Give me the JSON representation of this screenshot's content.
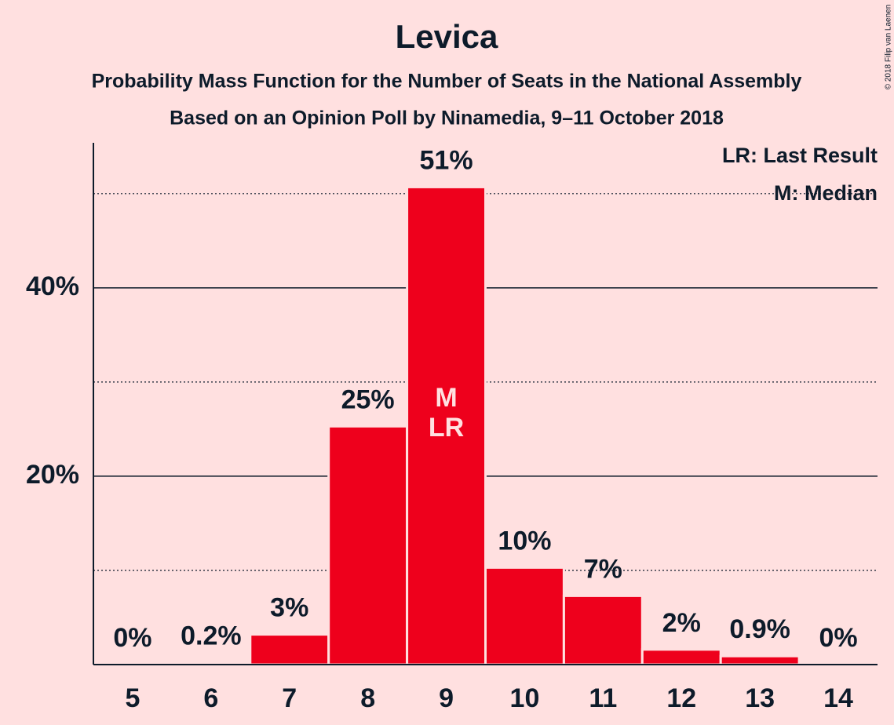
{
  "chart_data": {
    "type": "bar",
    "title": "Levica",
    "subtitle": [
      "Probability Mass Function for the Number of Seats in the National Assembly",
      "Based on an Opinion Poll by Ninamedia, 9–11 October 2018"
    ],
    "copyright": "© 2018 Filip van Laenen",
    "categories": [
      "5",
      "6",
      "7",
      "8",
      "9",
      "10",
      "11",
      "12",
      "13",
      "14"
    ],
    "values": [
      0,
      0.2,
      3.2,
      25.3,
      50.7,
      10.3,
      7.3,
      1.6,
      0.9,
      0
    ],
    "value_labels": [
      "0%",
      "0.2%",
      "3%",
      "25%",
      "51%",
      "10%",
      "7%",
      "2%",
      "0.9%",
      "0%"
    ],
    "color": "#ee001c",
    "ylim": [
      0,
      55.4
    ],
    "yticks": [
      {
        "value": 20,
        "label": "20%"
      },
      {
        "value": 40,
        "label": "40%"
      }
    ],
    "minor_yticks": [
      10,
      30,
      50
    ],
    "grid": true,
    "bar_annotations": [
      {
        "category": "9",
        "lines": [
          "M",
          "LR"
        ]
      }
    ],
    "legend": [
      "LR: Last Result",
      "M: Median"
    ],
    "legend_position": "top-right"
  }
}
